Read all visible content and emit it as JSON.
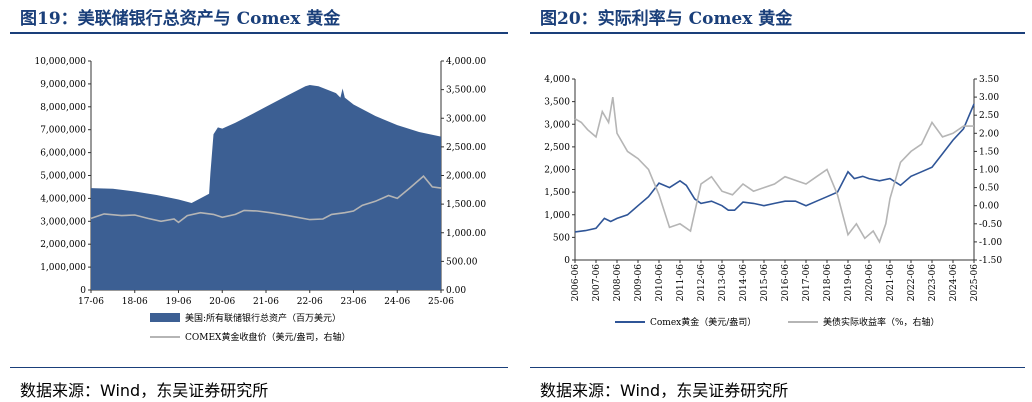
{
  "left": {
    "title": "图19：美联储银行总资产与 Comex 黄金",
    "source": "数据来源：Wind，东吴证券研究所"
  },
  "right": {
    "title": "图20：实际利率与 Comex 黄金",
    "source": "数据来源：Wind，东吴证券研究所"
  },
  "colors": {
    "navy": "#3c5f93",
    "blue": "#2f5597",
    "grey": "#b5b5b5",
    "title": "#1a3f7a"
  },
  "chart_data": [
    {
      "type": "area",
      "x": [
        "17-06",
        "18-06",
        "19-06",
        "20-06",
        "21-06",
        "22-06",
        "23-06",
        "24-06",
        "25-06"
      ],
      "x_tick_labels": [
        "17-06",
        "18-06",
        "19-06",
        "20-06",
        "21-06",
        "22-06",
        "23-06",
        "24-06",
        "25-06"
      ],
      "y_left_ticks": [
        "10,000,000",
        "9,000,000",
        "8,000,000",
        "7,000,000",
        "6,000,000",
        "5,000,000",
        "4,000,000",
        "3,000,000",
        "2,000,000",
        "1,000,000",
        "0"
      ],
      "y_right_ticks": [
        "4,000.00",
        "3,500.00",
        "3,000.00",
        "2,500.00",
        "2,000.00",
        "1,500.00",
        "1,000.00",
        "500.00",
        "0.00"
      ],
      "ylim_left": [
        0,
        10000000
      ],
      "ylim_right": [
        0,
        4000
      ],
      "series": [
        {
          "name": "美国:所有联储银行总资产（百万美元）",
          "axis": "left",
          "kind": "area",
          "x": [
            0,
            0.5,
            1.0,
            1.5,
            2.0,
            2.3,
            2.5,
            2.7,
            2.73,
            2.8,
            2.9,
            3.0,
            3.3,
            3.6,
            4.0,
            4.5,
            4.9,
            5.0,
            5.2,
            5.6,
            5.7,
            5.75,
            5.8,
            6.0,
            6.5,
            7.0,
            7.5,
            8.0
          ],
          "values": [
            4450000,
            4420000,
            4300000,
            4150000,
            3950000,
            3800000,
            4000000,
            4200000,
            5100000,
            6800000,
            7100000,
            7050000,
            7300000,
            7600000,
            8000000,
            8500000,
            8900000,
            8950000,
            8900000,
            8600000,
            8400000,
            8800000,
            8400000,
            8100000,
            7600000,
            7200000,
            6900000,
            6700000
          ]
        },
        {
          "name": "COMEX黄金收盘价（美元/盎司，右轴）",
          "axis": "right",
          "kind": "line",
          "x": [
            0,
            0.3,
            0.7,
            1.0,
            1.3,
            1.6,
            1.9,
            2.0,
            2.2,
            2.5,
            2.8,
            3.0,
            3.3,
            3.5,
            3.8,
            4.1,
            4.5,
            5.0,
            5.3,
            5.5,
            5.8,
            6.0,
            6.2,
            6.5,
            6.8,
            7.0,
            7.3,
            7.6,
            7.8,
            8.0
          ],
          "values": [
            1250,
            1330,
            1300,
            1310,
            1250,
            1200,
            1240,
            1180,
            1300,
            1350,
            1320,
            1270,
            1320,
            1390,
            1380,
            1350,
            1300,
            1230,
            1240,
            1320,
            1350,
            1380,
            1480,
            1550,
            1650,
            1600,
            1790,
            1990,
            1800,
            1780
          ]
        }
      ]
    },
    {
      "type": "line",
      "x": [
        "2006-06",
        "2007-06",
        "2008-06",
        "2009-06",
        "2010-06",
        "2011-06",
        "2012-06",
        "2013-06",
        "2014-06",
        "2015-06",
        "2016-06",
        "2017-06",
        "2018-06",
        "2019-06",
        "2020-06",
        "2021-06",
        "2022-06",
        "2023-06",
        "2024-06",
        "2025-06"
      ],
      "x_tick_labels": [
        "2006-06",
        "2007-06",
        "2008-06",
        "2009-06",
        "2010-06",
        "2011-06",
        "2012-06",
        "2013-06",
        "2014-06",
        "2015-06",
        "2016-06",
        "2017-06",
        "2018-06",
        "2019-06",
        "2020-06",
        "2021-06",
        "2022-06",
        "2023-06",
        "2024-06",
        "2025-06"
      ],
      "y_left_ticks": [
        "4,000",
        "3,500",
        "3,000",
        "2,500",
        "2,000",
        "1,500",
        "1,000",
        "500",
        "0"
      ],
      "y_right_ticks": [
        "3.50",
        "3.00",
        "2.50",
        "2.00",
        "1.50",
        "1.00",
        "0.50",
        "0.00",
        "-0.50",
        "-1.00",
        "-1.50"
      ],
      "ylim_left": [
        0,
        4000
      ],
      "ylim_right": [
        -1.5,
        3.5
      ],
      "series": [
        {
          "name": "Comex黄金（美元/盎司）",
          "axis": "left",
          "x": [
            0,
            0.5,
            1.0,
            1.4,
            1.7,
            2.0,
            2.5,
            3.0,
            3.5,
            4.0,
            4.5,
            5.0,
            5.3,
            5.7,
            6.0,
            6.5,
            7.0,
            7.3,
            7.6,
            8.0,
            8.5,
            9.0,
            9.5,
            10.0,
            10.5,
            11.0,
            11.5,
            12.0,
            12.5,
            13.0,
            13.3,
            13.7,
            14.0,
            14.5,
            15.0,
            15.5,
            16.0,
            16.5,
            17.0,
            17.5,
            18.0,
            18.5,
            19.0
          ],
          "values": [
            620,
            650,
            700,
            920,
            850,
            920,
            1000,
            1200,
            1400,
            1700,
            1600,
            1750,
            1650,
            1350,
            1250,
            1300,
            1200,
            1100,
            1100,
            1280,
            1250,
            1200,
            1250,
            1300,
            1300,
            1200,
            1300,
            1400,
            1500,
            1950,
            1800,
            1850,
            1800,
            1750,
            1800,
            1650,
            1850,
            1950,
            2050,
            2350,
            2650,
            2900,
            3450
          ]
        },
        {
          "name": "美债实际收益率（%，右轴）",
          "axis": "right",
          "x": [
            0,
            0.3,
            0.6,
            1.0,
            1.3,
            1.6,
            1.8,
            2.0,
            2.5,
            3.0,
            3.5,
            4.0,
            4.5,
            5.0,
            5.5,
            6.0,
            6.5,
            7.0,
            7.5,
            8.0,
            8.5,
            9.0,
            9.5,
            10.0,
            10.5,
            11.0,
            11.5,
            12.0,
            12.5,
            13.0,
            13.4,
            13.8,
            14.2,
            14.5,
            14.8,
            15.0,
            15.5,
            16.0,
            16.5,
            17.0,
            17.5,
            18.0,
            18.5,
            19.0
          ],
          "values": [
            2.4,
            2.3,
            2.1,
            1.9,
            2.6,
            2.3,
            3.0,
            2.0,
            1.5,
            1.3,
            1.0,
            0.3,
            -0.6,
            -0.5,
            -0.7,
            0.6,
            0.8,
            0.4,
            0.3,
            0.6,
            0.4,
            0.5,
            0.6,
            0.8,
            0.7,
            0.6,
            0.8,
            1.0,
            0.3,
            -0.8,
            -0.5,
            -0.9,
            -0.7,
            -1.0,
            -0.5,
            0.2,
            1.2,
            1.5,
            1.7,
            2.3,
            1.9,
            2.0,
            2.2,
            2.2
          ]
        }
      ]
    }
  ]
}
